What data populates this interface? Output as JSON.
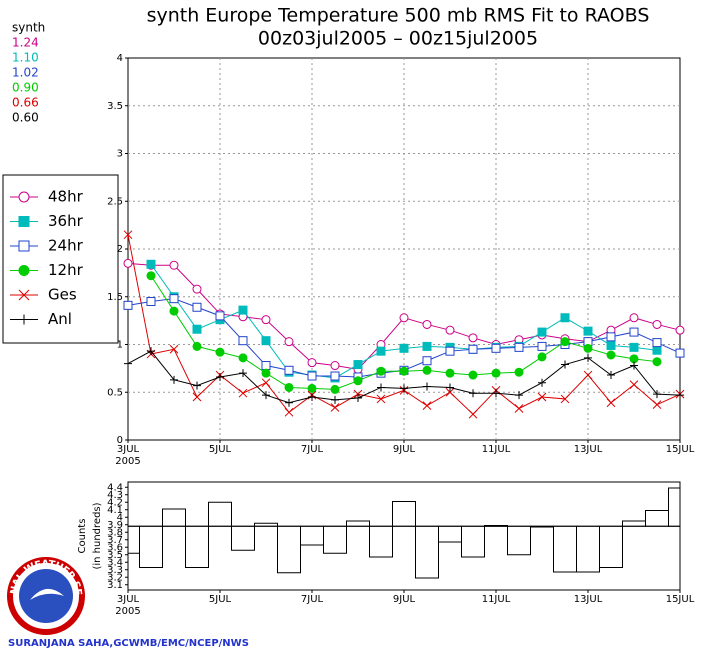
{
  "chart_data": [
    {
      "type": "line",
      "title": "synth Europe Temperature 500 mb RMS Fit to RAOBS",
      "subtitle": "00z03jul2005 – 00z15jul2005",
      "categories": [
        "3JUL",
        null,
        null,
        null,
        "5JUL",
        null,
        null,
        null,
        "7JUL",
        null,
        null,
        null,
        "9JUL",
        null,
        null,
        null,
        "11JUL",
        null,
        null,
        null,
        "13JUL",
        null,
        null,
        null,
        "15JUL"
      ],
      "x_year": "2005",
      "ylim": [
        0,
        4
      ],
      "yticks": [
        0,
        0.5,
        1,
        1.5,
        2,
        2.5,
        3,
        3.5,
        4
      ],
      "grid": true,
      "summary": {
        "title": "synth",
        "values": [
          1.24,
          1.1,
          1.02,
          0.9,
          0.66,
          0.6
        ],
        "value_labels": [
          "1.24",
          "1.10",
          "1.02",
          "0.90",
          "0.66",
          "0.60"
        ],
        "colors": [
          "#cc0088",
          "#00bbbb",
          "#2244cc",
          "#00cc00",
          "#dd0000",
          "#000000"
        ]
      },
      "series": [
        {
          "name": "48hr",
          "color": "#cc0088",
          "marker": "circle-open",
          "values": [
            1.85,
            1.83,
            1.83,
            1.58,
            1.32,
            1.29,
            1.26,
            1.03,
            0.81,
            0.78,
            0.74,
            1.0,
            1.28,
            1.21,
            1.15,
            1.07,
            1.0,
            1.05,
            1.1,
            1.06,
            1.03,
            1.15,
            1.28,
            1.21,
            1.15
          ]
        },
        {
          "name": "36hr",
          "color": "#00bbbb",
          "marker": "square",
          "values": [
            null,
            1.84,
            1.5,
            1.16,
            1.26,
            1.36,
            1.04,
            0.71,
            0.68,
            0.65,
            0.79,
            0.93,
            0.96,
            0.98,
            0.97,
            0.95,
            0.97,
            0.98,
            1.13,
            1.28,
            1.14,
            0.99,
            0.97,
            0.94,
            null
          ]
        },
        {
          "name": "24hr",
          "color": "#2244cc",
          "marker": "square-open",
          "values": [
            1.41,
            1.45,
            1.48,
            1.39,
            1.3,
            1.04,
            0.78,
            0.73,
            0.67,
            0.67,
            0.66,
            0.7,
            0.73,
            0.83,
            0.93,
            0.95,
            0.96,
            0.97,
            0.98,
            1.0,
            1.03,
            1.08,
            1.13,
            1.02,
            0.91
          ]
        },
        {
          "name": "12hr",
          "color": "#00cc00",
          "marker": "circle",
          "values": [
            null,
            1.72,
            1.35,
            0.98,
            0.92,
            0.86,
            0.7,
            0.55,
            0.54,
            0.53,
            0.62,
            0.72,
            0.72,
            0.73,
            0.7,
            0.68,
            0.7,
            0.71,
            0.87,
            1.03,
            0.96,
            0.89,
            0.85,
            0.82,
            null
          ]
        },
        {
          "name": "Ges",
          "color": "#dd0000",
          "marker": "x",
          "values": [
            2.15,
            0.9,
            0.95,
            0.45,
            0.68,
            0.49,
            0.6,
            0.29,
            0.47,
            0.34,
            0.48,
            0.43,
            0.52,
            0.36,
            0.5,
            0.27,
            0.52,
            0.33,
            0.45,
            0.43,
            0.68,
            0.39,
            0.58,
            0.37,
            0.48
          ]
        },
        {
          "name": "Anl",
          "color": "#000000",
          "marker": "plus",
          "values": [
            0.8,
            0.93,
            0.63,
            0.57,
            0.66,
            0.7,
            0.47,
            0.39,
            0.45,
            0.42,
            0.44,
            0.55,
            0.54,
            0.56,
            0.55,
            0.49,
            0.49,
            0.47,
            0.6,
            0.79,
            0.86,
            0.68,
            0.78,
            0.48,
            0.47
          ]
        }
      ]
    },
    {
      "type": "bar",
      "ylabel": "Counts",
      "ylabel2": "(in hundreds)",
      "categories": [
        "3JUL",
        null,
        null,
        null,
        "5JUL",
        null,
        null,
        null,
        "7JUL",
        null,
        null,
        null,
        "9JUL",
        null,
        null,
        null,
        "11JUL",
        null,
        null,
        null,
        "13JUL",
        null,
        null,
        null,
        "15JUL"
      ],
      "x_year": "2005",
      "ylim": [
        3.03,
        4.47
      ],
      "yticks": [
        3.1,
        3.2,
        3.3,
        3.4,
        3.5,
        3.6,
        3.7,
        3.8,
        3.9,
        4,
        4.1,
        4.2,
        4.3,
        4.4
      ],
      "baseline": 3.88,
      "values": [
        3.52,
        3.33,
        4.11,
        3.33,
        4.2,
        3.56,
        3.92,
        3.26,
        3.63,
        3.52,
        3.95,
        3.47,
        4.21,
        3.19,
        3.67,
        3.47,
        3.89,
        3.5,
        3.87,
        3.27,
        3.27,
        3.33,
        3.95,
        4.09,
        4.39
      ]
    }
  ],
  "logo_text": "NATIONAL WEATHER SERVICE",
  "credit": "SURANJANA SAHA,GCWMB/EMC/NCEP/NWS"
}
